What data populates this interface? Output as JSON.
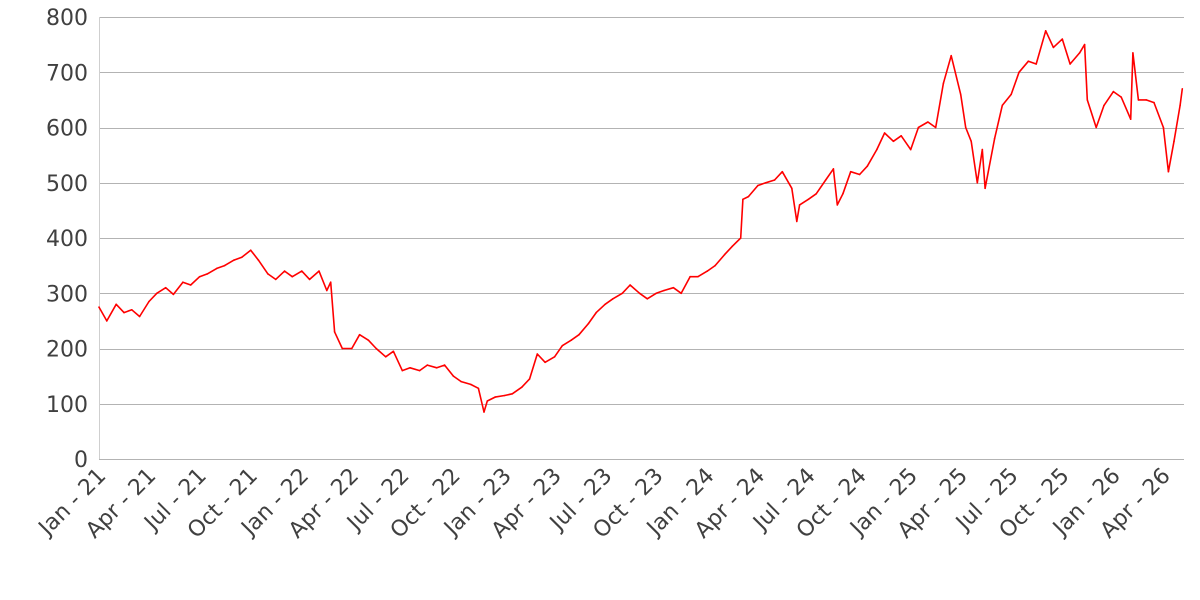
{
  "chart_data": {
    "type": "line",
    "title": "",
    "xlabel": "",
    "ylabel": "",
    "ylim": [
      0,
      800
    ],
    "grid": "horizontal",
    "legend": "none",
    "y_ticks": [
      0,
      100,
      200,
      300,
      400,
      500,
      600,
      700,
      800
    ],
    "x_ticks": [
      {
        "date": "2021-01-01",
        "label": "Jan - 21"
      },
      {
        "date": "2021-04-01",
        "label": "Apr - 21"
      },
      {
        "date": "2021-07-01",
        "label": "Jul - 21"
      },
      {
        "date": "2021-10-01",
        "label": "Oct - 21"
      },
      {
        "date": "2022-01-01",
        "label": "Jan - 22"
      },
      {
        "date": "2022-04-01",
        "label": "Apr - 22"
      },
      {
        "date": "2022-07-01",
        "label": "Jul - 22"
      },
      {
        "date": "2022-10-01",
        "label": "Oct - 22"
      },
      {
        "date": "2023-01-01",
        "label": "Jan - 23"
      },
      {
        "date": "2023-04-01",
        "label": "Apr - 23"
      },
      {
        "date": "2023-07-01",
        "label": "Jul - 23"
      },
      {
        "date": "2023-10-01",
        "label": "Oct - 23"
      },
      {
        "date": "2024-01-01",
        "label": "Jan - 24"
      },
      {
        "date": "2024-04-01",
        "label": "Apr - 24"
      },
      {
        "date": "2024-07-01",
        "label": "Jul - 24"
      },
      {
        "date": "2024-10-01",
        "label": "Oct - 24"
      },
      {
        "date": "2025-01-01",
        "label": "Jan - 25"
      },
      {
        "date": "2025-04-01",
        "label": "Apr - 25"
      },
      {
        "date": "2025-07-01",
        "label": "Jul - 25"
      },
      {
        "date": "2025-10-01",
        "label": "Oct - 25"
      },
      {
        "date": "2026-01-01",
        "label": "Jan - 26"
      },
      {
        "date": "2026-04-01",
        "label": "Apr - 26"
      }
    ],
    "series": [
      {
        "color": "#ff0000",
        "points": [
          [
            "2021-01-01",
            275
          ],
          [
            "2021-01-15",
            250
          ],
          [
            "2021-02-01",
            280
          ],
          [
            "2021-02-15",
            265
          ],
          [
            "2021-03-01",
            270
          ],
          [
            "2021-03-15",
            258
          ],
          [
            "2021-04-01",
            285
          ],
          [
            "2021-04-15",
            300
          ],
          [
            "2021-05-01",
            310
          ],
          [
            "2021-05-15",
            298
          ],
          [
            "2021-06-01",
            320
          ],
          [
            "2021-06-15",
            315
          ],
          [
            "2021-07-01",
            330
          ],
          [
            "2021-07-15",
            335
          ],
          [
            "2021-08-01",
            345
          ],
          [
            "2021-08-15",
            350
          ],
          [
            "2021-09-01",
            360
          ],
          [
            "2021-09-15",
            365
          ],
          [
            "2021-10-01",
            378
          ],
          [
            "2021-10-15",
            360
          ],
          [
            "2021-11-01",
            335
          ],
          [
            "2021-11-15",
            325
          ],
          [
            "2021-12-01",
            340
          ],
          [
            "2021-12-15",
            330
          ],
          [
            "2022-01-01",
            340
          ],
          [
            "2022-01-15",
            325
          ],
          [
            "2022-02-01",
            340
          ],
          [
            "2022-02-15",
            305
          ],
          [
            "2022-02-22",
            320
          ],
          [
            "2022-03-01",
            230
          ],
          [
            "2022-03-15",
            200
          ],
          [
            "2022-04-01",
            200
          ],
          [
            "2022-04-15",
            225
          ],
          [
            "2022-05-01",
            215
          ],
          [
            "2022-05-15",
            200
          ],
          [
            "2022-06-01",
            185
          ],
          [
            "2022-06-15",
            195
          ],
          [
            "2022-07-01",
            160
          ],
          [
            "2022-07-15",
            165
          ],
          [
            "2022-08-01",
            160
          ],
          [
            "2022-08-15",
            170
          ],
          [
            "2022-09-01",
            165
          ],
          [
            "2022-09-15",
            170
          ],
          [
            "2022-10-01",
            150
          ],
          [
            "2022-10-15",
            140
          ],
          [
            "2022-11-01",
            135
          ],
          [
            "2022-11-15",
            128
          ],
          [
            "2022-11-25",
            85
          ],
          [
            "2022-12-01",
            105
          ],
          [
            "2022-12-15",
            112
          ],
          [
            "2023-01-01",
            115
          ],
          [
            "2023-01-15",
            118
          ],
          [
            "2023-02-01",
            130
          ],
          [
            "2023-02-15",
            145
          ],
          [
            "2023-03-01",
            190
          ],
          [
            "2023-03-15",
            175
          ],
          [
            "2023-04-01",
            185
          ],
          [
            "2023-04-15",
            205
          ],
          [
            "2023-05-01",
            215
          ],
          [
            "2023-05-15",
            225
          ],
          [
            "2023-06-01",
            245
          ],
          [
            "2023-06-15",
            265
          ],
          [
            "2023-07-01",
            280
          ],
          [
            "2023-07-15",
            290
          ],
          [
            "2023-08-01",
            300
          ],
          [
            "2023-08-15",
            315
          ],
          [
            "2023-09-01",
            300
          ],
          [
            "2023-09-15",
            290
          ],
          [
            "2023-10-01",
            300
          ],
          [
            "2023-10-15",
            305
          ],
          [
            "2023-11-01",
            310
          ],
          [
            "2023-11-15",
            300
          ],
          [
            "2023-12-01",
            330
          ],
          [
            "2023-12-15",
            330
          ],
          [
            "2024-01-01",
            340
          ],
          [
            "2024-01-15",
            350
          ],
          [
            "2024-02-01",
            370
          ],
          [
            "2024-02-15",
            385
          ],
          [
            "2024-03-01",
            400
          ],
          [
            "2024-03-05",
            470
          ],
          [
            "2024-03-15",
            475
          ],
          [
            "2024-04-01",
            495
          ],
          [
            "2024-04-15",
            500
          ],
          [
            "2024-05-01",
            505
          ],
          [
            "2024-05-15",
            520
          ],
          [
            "2024-06-01",
            490
          ],
          [
            "2024-06-10",
            430
          ],
          [
            "2024-06-15",
            460
          ],
          [
            "2024-07-01",
            470
          ],
          [
            "2024-07-15",
            480
          ],
          [
            "2024-08-01",
            505
          ],
          [
            "2024-08-15",
            525
          ],
          [
            "2024-08-22",
            460
          ],
          [
            "2024-09-01",
            480
          ],
          [
            "2024-09-15",
            520
          ],
          [
            "2024-10-01",
            515
          ],
          [
            "2024-10-15",
            530
          ],
          [
            "2024-11-01",
            560
          ],
          [
            "2024-11-15",
            590
          ],
          [
            "2024-12-01",
            575
          ],
          [
            "2024-12-15",
            585
          ],
          [
            "2025-01-01",
            560
          ],
          [
            "2025-01-15",
            600
          ],
          [
            "2025-02-01",
            610
          ],
          [
            "2025-02-15",
            600
          ],
          [
            "2025-03-01",
            680
          ],
          [
            "2025-03-15",
            730
          ],
          [
            "2025-04-01",
            660
          ],
          [
            "2025-04-10",
            600
          ],
          [
            "2025-04-20",
            575
          ],
          [
            "2025-05-01",
            500
          ],
          [
            "2025-05-10",
            560
          ],
          [
            "2025-05-15",
            490
          ],
          [
            "2025-06-01",
            580
          ],
          [
            "2025-06-15",
            640
          ],
          [
            "2025-07-01",
            660
          ],
          [
            "2025-07-15",
            700
          ],
          [
            "2025-08-01",
            720
          ],
          [
            "2025-08-15",
            715
          ],
          [
            "2025-09-01",
            775
          ],
          [
            "2025-09-15",
            745
          ],
          [
            "2025-10-01",
            760
          ],
          [
            "2025-10-15",
            715
          ],
          [
            "2025-11-01",
            735
          ],
          [
            "2025-11-10",
            750
          ],
          [
            "2025-11-15",
            650
          ],
          [
            "2025-12-01",
            600
          ],
          [
            "2025-12-15",
            640
          ],
          [
            "2026-01-01",
            665
          ],
          [
            "2026-01-15",
            655
          ],
          [
            "2026-02-01",
            615
          ],
          [
            "2026-02-05",
            735
          ],
          [
            "2026-02-15",
            650
          ],
          [
            "2026-03-01",
            650
          ],
          [
            "2026-03-15",
            645
          ],
          [
            "2026-04-01",
            600
          ],
          [
            "2026-04-10",
            520
          ],
          [
            "2026-04-20",
            575
          ],
          [
            "2026-05-01",
            640
          ],
          [
            "2026-05-05",
            670
          ]
        ]
      }
    ]
  }
}
